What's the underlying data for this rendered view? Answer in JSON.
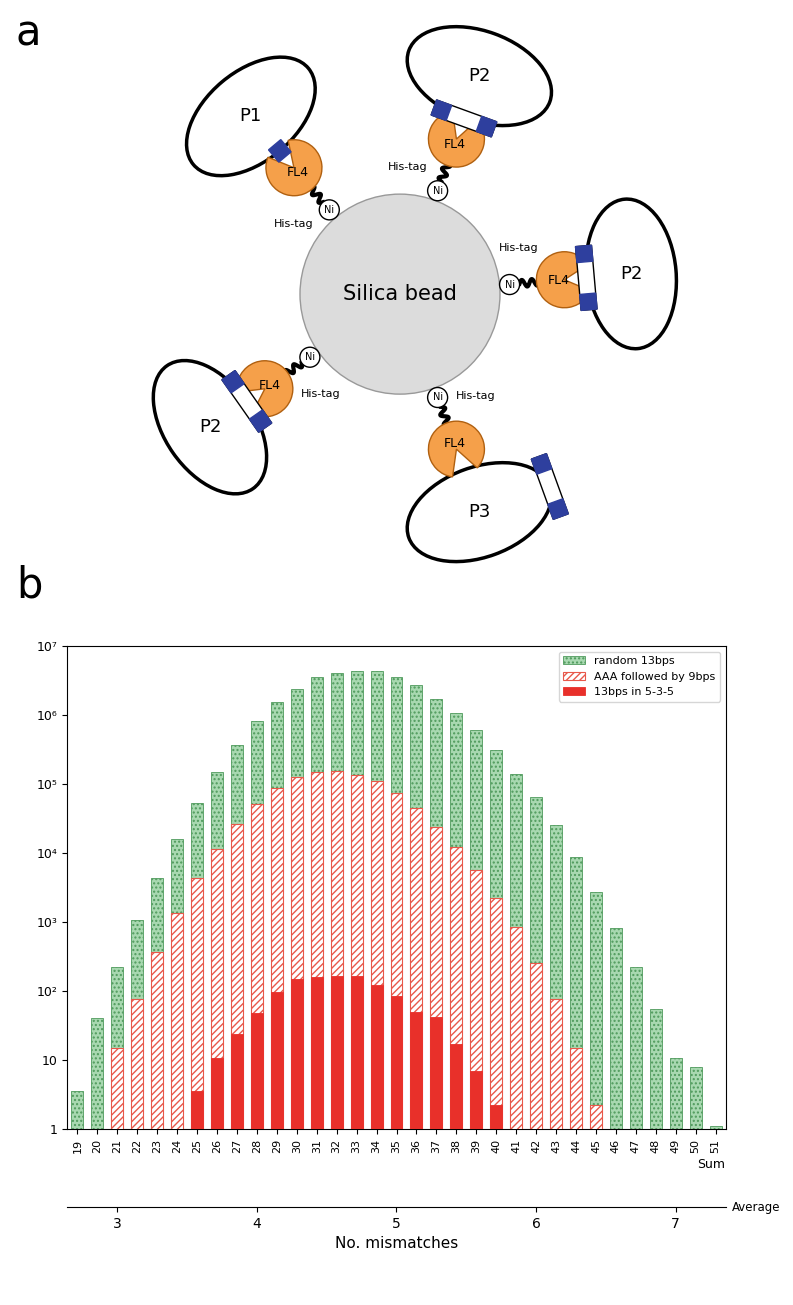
{
  "panel_a": {
    "label": "a",
    "bead": "Silica bead",
    "units": [
      {
        "plasmid": "P1",
        "protein": "FL4",
        "tag": "His-tag",
        "metal": "Ni"
      },
      {
        "plasmid": "P2",
        "protein": "FL4",
        "tag": "His-tag",
        "metal": "Ni"
      },
      {
        "plasmid": "P2",
        "protein": "FL4",
        "tag": "His-tag",
        "metal": "Ni"
      },
      {
        "plasmid": "P2",
        "protein": "FL4",
        "tag": "His-tag",
        "metal": "Ni"
      },
      {
        "plasmid": "P3",
        "protein": "FL4",
        "tag": "His-tag",
        "metal": "Ni"
      }
    ]
  },
  "chart_data": {
    "type": "bar",
    "panel_label": "b",
    "x": [
      19,
      20,
      21,
      22,
      23,
      24,
      25,
      26,
      27,
      28,
      29,
      30,
      31,
      32,
      33,
      34,
      35,
      36,
      37,
      38,
      39,
      40,
      41,
      42,
      43,
      44,
      45,
      46,
      47,
      48,
      49,
      50,
      51
    ],
    "xlim": [
      18.5,
      51.5
    ],
    "xticks": [
      19,
      20,
      21,
      22,
      23,
      24,
      25,
      26,
      27,
      28,
      29,
      30,
      31,
      32,
      33,
      34,
      35,
      36,
      37,
      38,
      39,
      40,
      41,
      42,
      43,
      44,
      45,
      46,
      47,
      48,
      49,
      50,
      51
    ],
    "xlabel": "Sum",
    "x2lim": [
      2.6429,
      7.3571
    ],
    "x2ticks": [
      3,
      4,
      5,
      6,
      7
    ],
    "x2label": "No. mismatches",
    "x2name": "Average",
    "log": "y",
    "ylim": [
      1,
      10000000
    ],
    "yticks": [
      1,
      10,
      {
        "value": 100,
        "label": "10²"
      },
      {
        "value": 1000,
        "label": "10³"
      },
      {
        "value": 10000,
        "label": "10⁴"
      },
      {
        "value": 100000,
        "label": "10⁵"
      },
      {
        "value": 1000000,
        "label": "10⁶"
      },
      {
        "value": 10000000,
        "label": "10⁷"
      }
    ],
    "legend": "upper right",
    "series": [
      {
        "name": "random 13bps",
        "color": "#a8d8b0",
        "values": [
          3.5,
          40,
          220,
          1050,
          4300,
          16000,
          53000,
          150000,
          370000,
          820000,
          1550000,
          2400000,
          3500000,
          4100000,
          4300000,
          4300000,
          3500000,
          2700000,
          1700000,
          1050000,
          600000,
          310000,
          140000,
          65000,
          25000,
          8800,
          2700,
          820,
          220,
          55,
          10.5,
          8,
          1.1
        ]
      },
      {
        "name": "AAA followed by 9bps",
        "color": "#e8584a",
        "values": [
          null,
          null,
          15,
          75,
          360,
          1350,
          4300,
          11500,
          26000,
          52000,
          88000,
          125000,
          150000,
          155000,
          135000,
          110000,
          75000,
          45000,
          24000,
          12000,
          5700,
          2200,
          850,
          250,
          75,
          15,
          2.2,
          null,
          null,
          null,
          null,
          null,
          null
        ]
      },
      {
        "name": "13bps in 5-3-5",
        "color": "#e8302a",
        "values": [
          null,
          null,
          null,
          null,
          null,
          null,
          3.5,
          10.5,
          24,
          47,
          95,
          150,
          160,
          165,
          165,
          120,
          85,
          50,
          42,
          17,
          7,
          2.2,
          null,
          null,
          null,
          null,
          null,
          null,
          null,
          null,
          null,
          null,
          null
        ]
      }
    ]
  }
}
